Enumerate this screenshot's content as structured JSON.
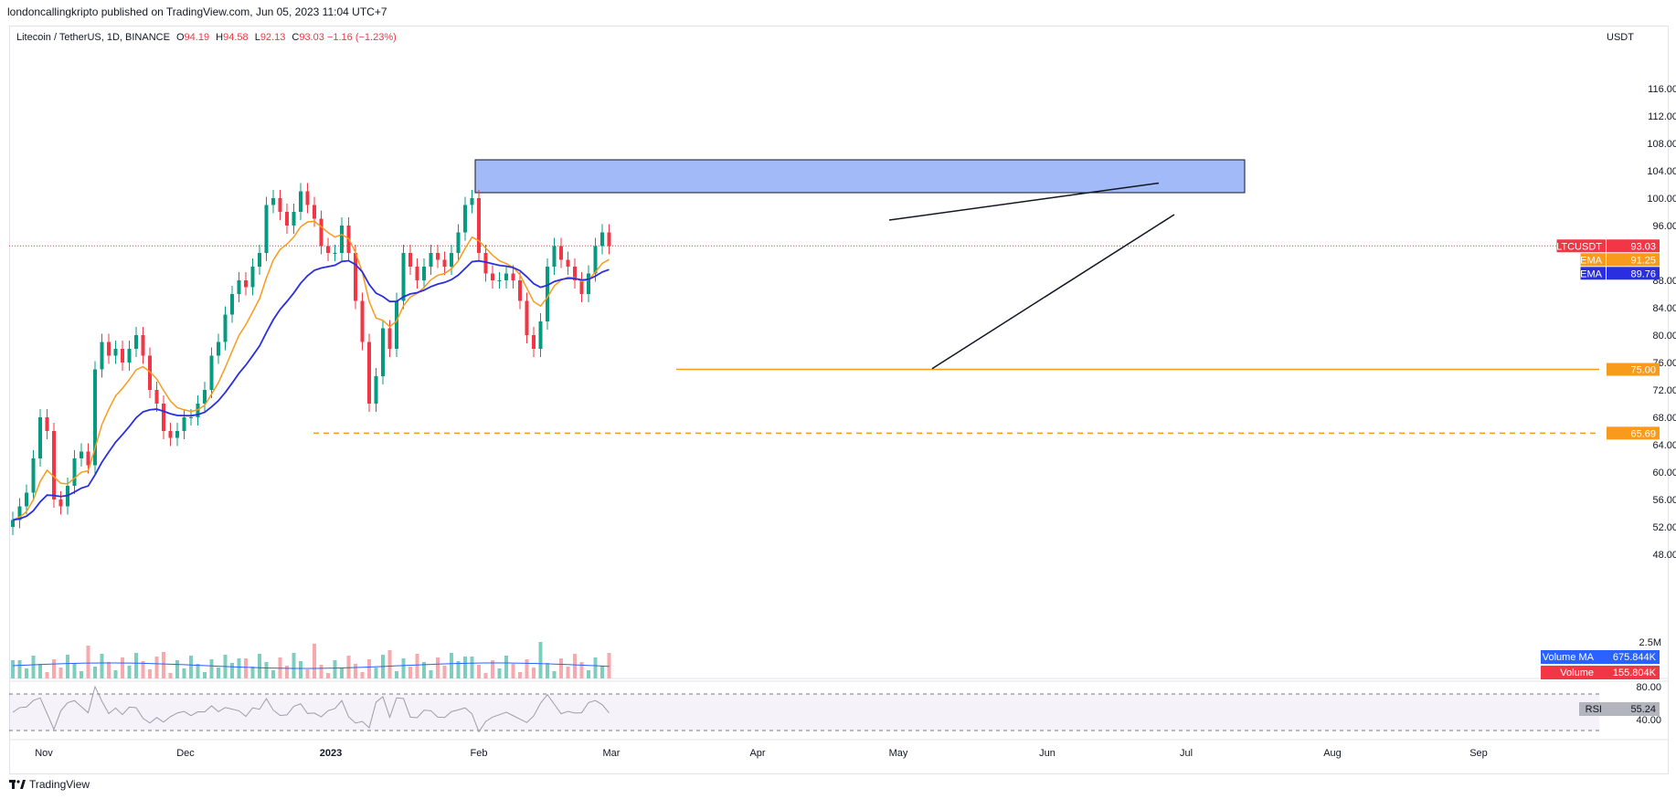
{
  "header": {
    "publisher": "londoncallingkripto published on TradingView.com, Jun 05, 2023 11:04 UTC+7"
  },
  "legend": {
    "symbol": "Litecoin / TetherUS, 1D, BINANCE",
    "o_key": "O",
    "o_val": "94.19",
    "h_key": "H",
    "h_val": "94.58",
    "l_key": "L",
    "l_val": "92.13",
    "c_key": "C",
    "c_val": "93.03",
    "change": "−1.16 (−1.23%)"
  },
  "price_axis": {
    "currency": "USDT",
    "ticks": [
      "116.00",
      "112.00",
      "108.00",
      "104.00",
      "100.00",
      "96.00",
      "88.00",
      "84.00",
      "80.00",
      "76.00",
      "72.00",
      "68.00",
      "64.00",
      "60.00",
      "56.00",
      "52.00",
      "48.00"
    ],
    "tick_values": [
      116,
      112,
      108,
      104,
      100,
      96,
      88,
      84,
      80,
      76,
      72,
      68,
      64,
      60,
      56,
      52,
      48
    ]
  },
  "price_tags": [
    {
      "label": "LTCUSDT",
      "value": "93.03",
      "color": "#f23645",
      "price": 93.03
    },
    {
      "label": "EMA",
      "value": "91.25",
      "color": "#f89b1c",
      "price": 91.25
    },
    {
      "label": "EMA",
      "value": "89.76",
      "color": "#2a2ee0",
      "price": 89.76
    },
    {
      "label": "",
      "value": "75.00",
      "color": "#f89b1c",
      "price": 75.0
    },
    {
      "label": "",
      "value": "65.69",
      "color": "#f89b1c",
      "price": 65.69
    }
  ],
  "volume_pane": {
    "axis_label": "2.5M",
    "ma_label": "Volume MA",
    "ma_value": "675.844K",
    "ma_color": "#2962ff",
    "vol_label": "Volume",
    "vol_value": "155.804K",
    "vol_color": "#f23645"
  },
  "rsi_pane": {
    "label": "RSI",
    "value": "55.24",
    "upper": "80.00",
    "lower": "40.00"
  },
  "time_axis": {
    "labels": [
      "Nov",
      "Dec",
      "2023",
      "Feb",
      "Mar",
      "Apr",
      "May",
      "Jun",
      "Jul",
      "Aug",
      "Sep"
    ]
  },
  "footer": {
    "brand": "TradingView"
  },
  "chart_data": {
    "type": "candlestick",
    "title": "Litecoin / TetherUS, 1D, BINANCE",
    "ylim": [
      45,
      120
    ],
    "x_labels": [
      "Nov",
      "Dec",
      "2023",
      "Feb",
      "Mar",
      "Apr",
      "May",
      "Jun",
      "Jul",
      "Aug",
      "Sep"
    ],
    "close_series": [
      53,
      55,
      57,
      62,
      68,
      66,
      56,
      55,
      58,
      62,
      63,
      61,
      75,
      79,
      77,
      78,
      76,
      78,
      80,
      77,
      72,
      70,
      66,
      65,
      66,
      68,
      68,
      70,
      72,
      77,
      79,
      83,
      86,
      88,
      87,
      90,
      92,
      99,
      100,
      98,
      96,
      98,
      101,
      99,
      97,
      93,
      92,
      92,
      96,
      92,
      85,
      79,
      70,
      74,
      81,
      78,
      85,
      92,
      90,
      88,
      90,
      92,
      91,
      90,
      92,
      95,
      99,
      100,
      92,
      89,
      88,
      88,
      89,
      88,
      85,
      80,
      78,
      82,
      90,
      93,
      91,
      90,
      88,
      86,
      89,
      93,
      95,
      93
    ],
    "ema_fast": {
      "name": "EMA",
      "last": 91.25
    },
    "ema_slow": {
      "name": "EMA",
      "last": 89.76
    },
    "annotations": {
      "resistance_zone": [
        100.8,
        105.6
      ],
      "support_line": 75.0,
      "support_dashed": 65.69,
      "wedge_upper": [
        [
          86,
          96.8
        ],
        [
          152,
          102.2
        ]
      ],
      "wedge_lower": [
        [
          84,
          75.1
        ],
        [
          155,
          97.6
        ]
      ]
    },
    "rsi_last": 55.24,
    "volume_last": "155.804K",
    "volume_ma_last": "675.844K"
  }
}
